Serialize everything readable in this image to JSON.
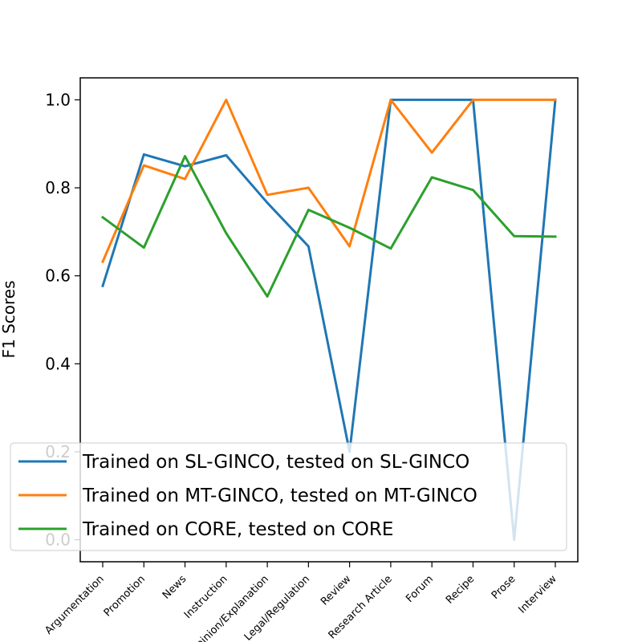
{
  "chart_data": {
    "type": "line",
    "title": "",
    "xlabel": "",
    "ylabel": "F1 Scores",
    "ylim": [
      -0.05,
      1.05
    ],
    "yticks": [
      "0.0",
      "0.2",
      "0.4",
      "0.6",
      "0.8",
      "1.0"
    ],
    "categories": [
      "Argumentation",
      "Promotion",
      "News",
      "Instruction",
      "Opinion/Explanation",
      "Legal/Regulation",
      "Review",
      "Research Article",
      "Forum",
      "Recipe",
      "Prose",
      "Interview"
    ],
    "legend_position": "lower-left",
    "grid": false,
    "series": [
      {
        "name": "Trained on SL-GINCO, tested on SL-GINCO",
        "color": "#1f77b4",
        "values": [
          0.577,
          0.876,
          0.849,
          0.874,
          0.766,
          0.667,
          0.2,
          1.0,
          1.0,
          1.0,
          0.0,
          1.0
        ]
      },
      {
        "name": "Trained on MT-GINCO, tested on MT-GINCO",
        "color": "#ff7f0e",
        "values": [
          0.632,
          0.851,
          0.82,
          1.0,
          0.784,
          0.8,
          0.667,
          1.0,
          0.88,
          1.0,
          1.0,
          1.0
        ]
      },
      {
        "name": "Trained on CORE, tested on CORE",
        "color": "#2ca02c",
        "values": [
          0.733,
          0.664,
          0.872,
          0.697,
          0.553,
          0.75,
          0.709,
          0.662,
          0.824,
          0.795,
          0.69,
          0.689
        ]
      }
    ]
  }
}
